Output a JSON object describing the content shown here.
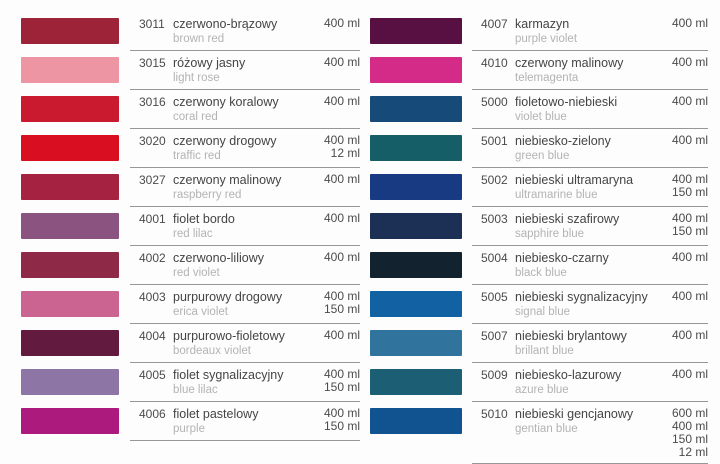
{
  "document": {
    "kind": "spray-paint color chart",
    "divider_color": "#979797",
    "text_color_primary": "#4b4b4b",
    "text_color_secondary": "#b3b3b3"
  },
  "columns": [
    {
      "side": "left",
      "rows": [
        {
          "code": "3011",
          "name_pl": "czerwono-brązowy",
          "name_en": "brown red",
          "color": "#9c2338",
          "volumes": [
            "400 ml"
          ]
        },
        {
          "code": "3015",
          "name_pl": "różowy jasny",
          "name_en": "light rose",
          "color": "#ee95a3",
          "volumes": [
            "400 ml"
          ]
        },
        {
          "code": "3016",
          "name_pl": "czerwony koralowy",
          "name_en": "coral red",
          "color": "#c91a2f",
          "volumes": [
            "400 ml"
          ]
        },
        {
          "code": "3020",
          "name_pl": "czerwony drogowy",
          "name_en": "traffic red",
          "color": "#d90f21",
          "volumes": [
            "400 ml",
            "12 ml"
          ]
        },
        {
          "code": "3027",
          "name_pl": "czerwony malinowy",
          "name_en": "raspberry red",
          "color": "#a52241",
          "volumes": [
            "400 ml"
          ]
        },
        {
          "code": "4001",
          "name_pl": "fiolet bordo",
          "name_en": "red lilac",
          "color": "#8a5380",
          "volumes": [
            "400 ml"
          ]
        },
        {
          "code": "4002",
          "name_pl": "czerwono-liliowy",
          "name_en": "red violet",
          "color": "#8f2948",
          "volumes": [
            "400 ml"
          ]
        },
        {
          "code": "4003",
          "name_pl": "purpurowy drogowy",
          "name_en": "erica violet",
          "color": "#cc6491",
          "volumes": [
            "400 ml",
            "150 ml"
          ]
        },
        {
          "code": "4004",
          "name_pl": "purpurowo-fioletowy",
          "name_en": "bordeaux violet",
          "color": "#621a3f",
          "volumes": [
            "400 ml"
          ]
        },
        {
          "code": "4005",
          "name_pl": "fiolet sygnalizacyjny",
          "name_en": "blue lilac",
          "color": "#8d75a5",
          "volumes": [
            "400 ml",
            "150 ml"
          ]
        },
        {
          "code": "4006",
          "name_pl": "fiolet pastelowy",
          "name_en": "purple",
          "color": "#ac1a7d",
          "volumes": [
            "400 ml",
            "150 ml"
          ]
        }
      ]
    },
    {
      "side": "right",
      "rows": [
        {
          "code": "4007",
          "name_pl": "karmazyn",
          "name_en": "purple violet",
          "color": "#571041",
          "volumes": [
            "400 ml"
          ]
        },
        {
          "code": "4010",
          "name_pl": "czerwony malinowy",
          "name_en": "telemagenta",
          "color": "#d32b87",
          "volumes": [
            "400 ml"
          ]
        },
        {
          "code": "5000",
          "name_pl": "fioletowo-niebieski",
          "name_en": "violet blue",
          "color": "#154a79",
          "volumes": [
            "400 ml"
          ]
        },
        {
          "code": "5001",
          "name_pl": "niebiesko-zielony",
          "name_en": "green blue",
          "color": "#155e68",
          "volumes": [
            "400 ml"
          ]
        },
        {
          "code": "5002",
          "name_pl": "niebieski ultramaryna",
          "name_en": "ultramarine blue",
          "color": "#173a82",
          "volumes": [
            "400 ml",
            "150 ml"
          ]
        },
        {
          "code": "5003",
          "name_pl": "niebieski szafirowy",
          "name_en": "sapphire blue",
          "color": "#1b3054",
          "volumes": [
            "400 ml",
            "150 ml"
          ]
        },
        {
          "code": "5004",
          "name_pl": "niebiesko-czarny",
          "name_en": "black blue",
          "color": "#13222f",
          "volumes": [
            "400 ml"
          ]
        },
        {
          "code": "5005",
          "name_pl": "niebieski sygnalizacyjny",
          "name_en": "signal blue",
          "color": "#1261a3",
          "volumes": [
            "400 ml"
          ]
        },
        {
          "code": "5007",
          "name_pl": "niebieski brylantowy",
          "name_en": "brillant blue",
          "color": "#30749d",
          "volumes": [
            "400 ml"
          ]
        },
        {
          "code": "5009",
          "name_pl": "niebiesko-lazurowy",
          "name_en": "azure blue",
          "color": "#1c5e73",
          "volumes": [
            "400 ml"
          ]
        },
        {
          "code": "5010",
          "name_pl": "niebieski gencjanowy",
          "name_en": "gentian blue",
          "color": "#115391",
          "volumes": [
            "600 ml",
            "400 ml",
            "150 ml",
            "12 ml"
          ]
        }
      ]
    }
  ]
}
